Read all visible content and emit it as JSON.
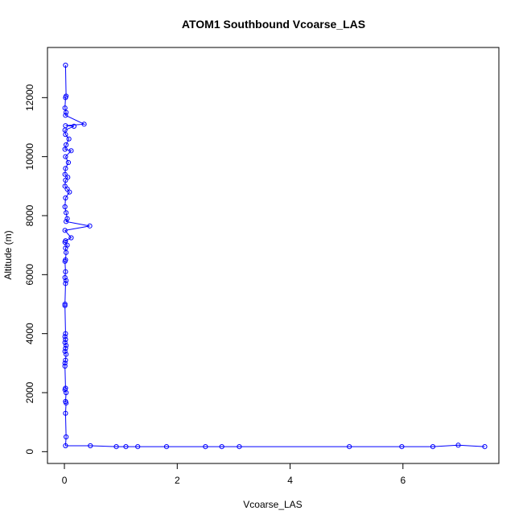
{
  "chart_data": {
    "type": "line",
    "title": "ATOM1 Southbound Vcoarse_LAS",
    "xlabel": "Vcoarse_LAS",
    "ylabel": "Altitude (m)",
    "xlim": [
      -0.3,
      7.7
    ],
    "ylim": [
      -400,
      13700
    ],
    "xticks": [
      "0",
      "2",
      "4",
      "6"
    ],
    "xtick_values": [
      0,
      2,
      4,
      6
    ],
    "yticks": [
      "0",
      "2000",
      "4000",
      "6000",
      "8000",
      "10000",
      "12000"
    ],
    "ytick_values": [
      0,
      2000,
      4000,
      6000,
      8000,
      10000,
      12000
    ],
    "grid": false,
    "series_color": "#0000ff",
    "series": [
      {
        "x": [
          0.02,
          0.03,
          0.02,
          0.01,
          0.03,
          0.02,
          0.35,
          0.02,
          0.17,
          0.01,
          0.02,
          0.08,
          0.03,
          0.01,
          0.12,
          0.02,
          0.07,
          0.02,
          0.01,
          0.06,
          0.02,
          0.01,
          0.05,
          0.09,
          0.02,
          0.01,
          0.03,
          0.05,
          0.03,
          0.45,
          0.01,
          0.12,
          0.02,
          0.01,
          0.05,
          0.02,
          0.03,
          0.02,
          0.01,
          0.02,
          0.01,
          0.03,
          0.02,
          0.01,
          0.01,
          0.02,
          0.01,
          0.02,
          0.01,
          0.03,
          0.02,
          0.01,
          0.03,
          0.02,
          0.01,
          0.01,
          0.02,
          0.01,
          0.03,
          0.02,
          0.03,
          0.02,
          0.03,
          0.02,
          0.46,
          0.92,
          1.09,
          1.3,
          1.81,
          2.5,
          2.79,
          3.1,
          5.05,
          5.98,
          6.53,
          6.98,
          7.45
        ],
        "y": [
          13100,
          12050,
          12000,
          11650,
          11500,
          11400,
          11100,
          11050,
          11030,
          10900,
          10750,
          10600,
          10400,
          10250,
          10200,
          10000,
          9800,
          9600,
          9400,
          9300,
          9200,
          9000,
          8900,
          8800,
          8600,
          8300,
          8100,
          7900,
          7800,
          7650,
          7500,
          7250,
          7150,
          7100,
          7000,
          6900,
          6750,
          6500,
          6450,
          6100,
          5900,
          5800,
          5700,
          5000,
          4950,
          4000,
          3900,
          3800,
          3700,
          3600,
          3500,
          3400,
          3300,
          3100,
          3000,
          2900,
          2150,
          2100,
          2000,
          1700,
          1650,
          1300,
          500,
          200,
          200,
          170,
          170,
          170,
          170,
          170,
          170,
          170,
          170,
          170,
          170,
          220,
          170
        ]
      }
    ]
  }
}
